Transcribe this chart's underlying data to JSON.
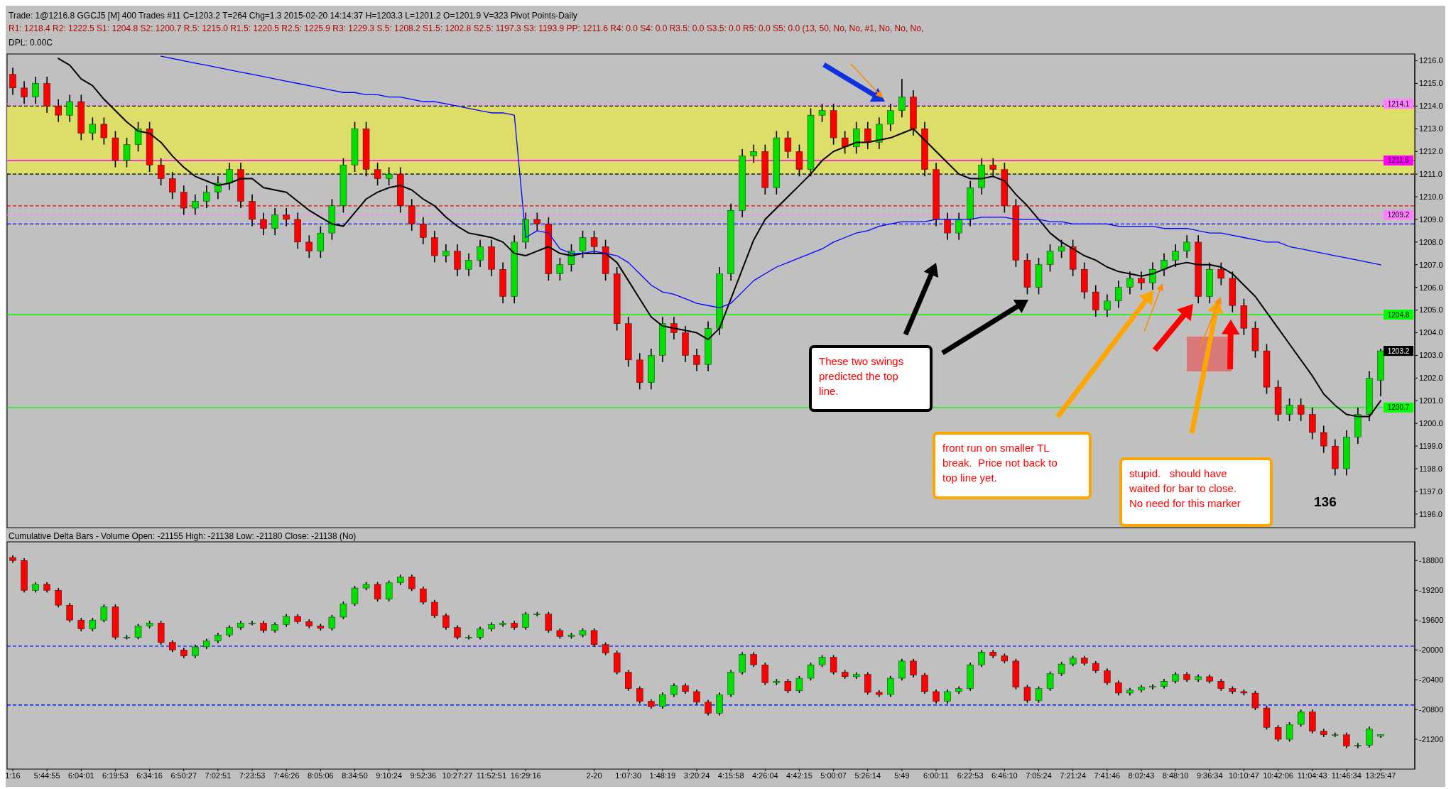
{
  "chart_data": [
    {
      "type": "candlestick",
      "title": "Trade: 1@1216.8  GGCJ5 [M]  400 Trades  #11  C=1203.2  T=264  Chg=1.3  2015-02-20 14:14:37 H=1203.3 L=1201.2 O=1201.9 V=323 Pivot Points-Daily",
      "subtitle": "R1: 1218.4  R2: 1222.5  S1: 1204.8  S2: 1200.7  R.5: 1215.0  R1.5: 1220.5  R2.5: 1225.9  R3: 1229.3  S.5: 1208.2  S1.5: 1202.8  S2.5: 1197.3  S3: 1193.9  PP: 1211.6  R4: 0.0  S4: 0.0  R3.5: 0.0  S3.5: 0.0  R5: 0.0  S5: 0.0  (13, 50, No, No, #1, No, No, No,",
      "annotations": [
        "DPL: 0.00C",
        "These two swings predicted the top line.",
        "front run on smaller TL break.  Price not back to top line yet.",
        "stupid.   should have waited for bar to close. No need for this marker",
        "136",
        {
          "text": "1203.2",
          "y": 1203.2
        }
      ],
      "categories": [
        null,
        null,
        null,
        null,
        null,
        null,
        null,
        null,
        null,
        null,
        null,
        null,
        null,
        null,
        null,
        null,
        null,
        null,
        null,
        null,
        null,
        null,
        null,
        null,
        null,
        null,
        null,
        null,
        null,
        null,
        null,
        null,
        null,
        null,
        null,
        null,
        null,
        null,
        null,
        null,
        null,
        null,
        null,
        null,
        null,
        null,
        null,
        null,
        null,
        null,
        null,
        null,
        null,
        null,
        null,
        null,
        null,
        null,
        null,
        null,
        null,
        null,
        null,
        null,
        null,
        null,
        null,
        null,
        null,
        null,
        null,
        null,
        null,
        null,
        null,
        null,
        null,
        null,
        null,
        null,
        null,
        null,
        null,
        null,
        null,
        null,
        null,
        null,
        null,
        null,
        null,
        null,
        null,
        null,
        null,
        null,
        null,
        null,
        null,
        null,
        null,
        null,
        null,
        null,
        null,
        null,
        null,
        null,
        null,
        null,
        null,
        null,
        null,
        null,
        null,
        null,
        null,
        null,
        null,
        null,
        null
      ],
      "ohlc": [
        [
          1215.4,
          1215.7,
          1214.5,
          1214.8
        ],
        [
          1214.8,
          1215.1,
          1214.1,
          1214.4
        ],
        [
          1214.4,
          1215.3,
          1214.1,
          1215.0
        ],
        [
          1215.0,
          1215.3,
          1213.7,
          1214.0
        ],
        [
          1214.0,
          1214.3,
          1213.3,
          1213.6
        ],
        [
          1213.6,
          1214.5,
          1213.3,
          1214.2
        ],
        [
          1214.2,
          1214.5,
          1212.5,
          1212.8
        ],
        [
          1212.8,
          1213.5,
          1212.5,
          1213.2
        ],
        [
          1213.2,
          1213.5,
          1212.3,
          1212.6
        ],
        [
          1212.6,
          1212.9,
          1211.3,
          1211.6
        ],
        [
          1211.6,
          1212.6,
          1211.3,
          1212.3
        ],
        [
          1212.3,
          1213.3,
          1212.0,
          1213.0
        ],
        [
          1213.0,
          1213.3,
          1211.1,
          1211.4
        ],
        [
          1211.4,
          1211.7,
          1210.5,
          1210.8
        ],
        [
          1210.8,
          1211.1,
          1209.9,
          1210.2
        ],
        [
          1210.2,
          1210.5,
          1209.2,
          1209.5
        ],
        [
          1209.5,
          1210.1,
          1209.2,
          1209.8
        ],
        [
          1209.8,
          1210.5,
          1209.5,
          1210.2
        ],
        [
          1210.2,
          1210.9,
          1209.9,
          1210.6
        ],
        [
          1210.6,
          1211.5,
          1210.3,
          1211.2
        ],
        [
          1211.2,
          1211.5,
          1209.5,
          1209.8
        ],
        [
          1209.8,
          1210.1,
          1208.7,
          1209.0
        ],
        [
          1209.0,
          1209.3,
          1208.3,
          1208.6
        ],
        [
          1208.6,
          1209.5,
          1208.3,
          1209.2
        ],
        [
          1209.2,
          1209.5,
          1208.7,
          1209.0
        ],
        [
          1209.0,
          1209.3,
          1207.7,
          1208.0
        ],
        [
          1208.0,
          1208.3,
          1207.3,
          1207.6
        ],
        [
          1207.6,
          1208.7,
          1207.3,
          1208.4
        ],
        [
          1208.4,
          1209.9,
          1208.1,
          1209.6
        ],
        [
          1209.6,
          1211.7,
          1209.3,
          1211.4
        ],
        [
          1211.4,
          1213.3,
          1211.1,
          1213.0
        ],
        [
          1213.0,
          1213.3,
          1210.9,
          1211.2
        ],
        [
          1211.2,
          1211.5,
          1210.5,
          1210.8
        ],
        [
          1210.8,
          1211.3,
          1210.5,
          1211.0
        ],
        [
          1211.0,
          1211.3,
          1209.3,
          1209.6
        ],
        [
          1209.6,
          1209.9,
          1208.5,
          1208.8
        ],
        [
          1208.8,
          1209.1,
          1207.9,
          1208.2
        ],
        [
          1208.2,
          1208.5,
          1207.1,
          1207.4
        ],
        [
          1207.4,
          1207.9,
          1207.1,
          1207.6
        ],
        [
          1207.6,
          1207.9,
          1206.5,
          1206.8
        ],
        [
          1206.8,
          1207.5,
          1206.5,
          1207.2
        ],
        [
          1207.2,
          1208.1,
          1206.9,
          1207.8
        ],
        [
          1207.8,
          1208.1,
          1206.5,
          1206.8
        ],
        [
          1206.8,
          1207.1,
          1205.3,
          1205.6
        ],
        [
          1205.6,
          1208.3,
          1205.3,
          1208.0
        ],
        [
          1208.0,
          1209.3,
          1207.7,
          1209.0
        ],
        [
          1209.0,
          1209.3,
          1208.5,
          1208.8
        ],
        [
          1208.8,
          1209.1,
          1206.3,
          1206.6
        ],
        [
          1206.6,
          1207.3,
          1206.3,
          1207.0
        ],
        [
          1207.0,
          1207.9,
          1206.7,
          1207.6
        ],
        [
          1207.6,
          1208.5,
          1207.3,
          1208.2
        ],
        [
          1208.2,
          1208.5,
          1207.5,
          1207.8
        ],
        [
          1207.8,
          1208.1,
          1206.3,
          1206.6
        ],
        [
          1206.6,
          1206.9,
          1204.1,
          1204.4
        ],
        [
          1204.4,
          1204.7,
          1202.5,
          1202.8
        ],
        [
          1202.8,
          1203.1,
          1201.5,
          1201.8
        ],
        [
          1201.8,
          1203.3,
          1201.5,
          1203.0
        ],
        [
          1203.0,
          1204.7,
          1202.7,
          1204.4
        ],
        [
          1204.4,
          1204.7,
          1203.7,
          1204.0
        ],
        [
          1204.0,
          1204.3,
          1202.7,
          1203.0
        ],
        [
          1203.0,
          1203.3,
          1202.3,
          1202.6
        ],
        [
          1202.6,
          1204.5,
          1202.3,
          1204.2
        ],
        [
          1204.2,
          1206.9,
          1203.9,
          1206.6
        ],
        [
          1206.6,
          1209.7,
          1206.3,
          1209.4
        ],
        [
          1209.4,
          1212.1,
          1209.1,
          1211.8
        ],
        [
          1211.8,
          1212.3,
          1211.5,
          1212.0
        ],
        [
          1212.0,
          1212.3,
          1210.1,
          1210.4
        ],
        [
          1210.4,
          1212.9,
          1210.1,
          1212.6
        ],
        [
          1212.6,
          1212.9,
          1211.7,
          1212.0
        ],
        [
          1212.0,
          1212.3,
          1210.9,
          1211.2
        ],
        [
          1211.2,
          1213.9,
          1210.9,
          1213.6
        ],
        [
          1213.6,
          1214.1,
          1213.3,
          1213.8
        ],
        [
          1213.8,
          1214.1,
          1212.3,
          1212.6
        ],
        [
          1212.6,
          1212.9,
          1211.9,
          1212.2
        ],
        [
          1212.2,
          1213.3,
          1211.9,
          1213.0
        ],
        [
          1213.0,
          1213.3,
          1212.1,
          1212.4
        ],
        [
          1212.4,
          1213.5,
          1212.1,
          1213.2
        ],
        [
          1213.2,
          1214.1,
          1212.9,
          1213.8
        ],
        [
          1213.8,
          1215.2,
          1213.5,
          1214.4
        ],
        [
          1214.4,
          1214.7,
          1212.7,
          1213.0
        ],
        [
          1213.0,
          1213.3,
          1210.9,
          1211.2
        ],
        [
          1211.2,
          1211.5,
          1208.7,
          1209.0
        ],
        [
          1209.0,
          1209.3,
          1208.1,
          1208.4
        ],
        [
          1208.4,
          1209.3,
          1208.1,
          1209.0
        ],
        [
          1209.0,
          1210.7,
          1208.7,
          1210.4
        ],
        [
          1210.4,
          1211.7,
          1210.1,
          1211.4
        ],
        [
          1211.4,
          1211.7,
          1210.9,
          1211.2
        ],
        [
          1211.2,
          1211.5,
          1209.3,
          1209.6
        ],
        [
          1209.6,
          1209.9,
          1206.9,
          1207.2
        ],
        [
          1207.2,
          1207.5,
          1205.7,
          1206.0
        ],
        [
          1206.0,
          1207.3,
          1205.7,
          1207.0
        ],
        [
          1207.0,
          1207.9,
          1206.7,
          1207.6
        ],
        [
          1207.6,
          1208.1,
          1207.3,
          1207.8
        ],
        [
          1207.8,
          1208.1,
          1206.5,
          1206.8
        ],
        [
          1206.8,
          1207.1,
          1205.5,
          1205.8
        ],
        [
          1205.8,
          1206.1,
          1204.7,
          1205.0
        ],
        [
          1205.0,
          1205.7,
          1204.7,
          1205.4
        ],
        [
          1205.4,
          1206.3,
          1205.1,
          1206.0
        ],
        [
          1206.0,
          1206.7,
          1205.7,
          1206.4
        ],
        [
          1206.4,
          1206.7,
          1205.9,
          1206.2
        ],
        [
          1206.2,
          1207.1,
          1205.9,
          1206.8
        ],
        [
          1206.8,
          1207.5,
          1206.5,
          1207.2
        ],
        [
          1207.2,
          1207.9,
          1206.9,
          1207.6
        ],
        [
          1207.6,
          1208.3,
          1207.3,
          1208.0
        ],
        [
          1208.0,
          1208.3,
          1205.3,
          1205.6
        ],
        [
          1205.6,
          1207.1,
          1205.3,
          1206.8
        ],
        [
          1206.8,
          1207.1,
          1206.1,
          1206.4
        ],
        [
          1206.4,
          1206.7,
          1204.9,
          1205.2
        ],
        [
          1205.2,
          1205.5,
          1203.9,
          1204.2
        ],
        [
          1204.2,
          1204.5,
          1202.9,
          1203.2
        ],
        [
          1203.2,
          1203.5,
          1201.3,
          1201.6
        ],
        [
          1201.6,
          1201.9,
          1200.1,
          1200.4
        ],
        [
          1200.4,
          1201.1,
          1200.1,
          1200.8
        ],
        [
          1200.8,
          1201.1,
          1200.1,
          1200.4
        ],
        [
          1200.4,
          1200.7,
          1199.3,
          1199.6
        ],
        [
          1199.6,
          1199.9,
          1198.7,
          1199.0
        ],
        [
          1199.0,
          1199.3,
          1197.7,
          1198.0
        ],
        [
          1198.0,
          1199.7,
          1197.7,
          1199.4
        ],
        [
          1199.4,
          1200.7,
          1199.1,
          1200.4
        ],
        [
          1200.4,
          1202.3,
          1200.1,
          1202.0
        ],
        [
          1201.9,
          1203.3,
          1201.2,
          1203.2
        ]
      ],
      "series": [
        {
          "type": "line",
          "color": "#000000",
          "values": [
            null,
            null,
            null,
            null,
            1216.1,
            1215.8,
            1215.2,
            1214.9,
            1214.3,
            1213.8,
            1213.3,
            1212.9,
            1212.8,
            1212.4,
            1211.8,
            1211.3,
            1210.9,
            1210.7,
            1210.5,
            1210.6,
            1210.8,
            1210.8,
            1210.4,
            1210.3,
            1210.2,
            1209.8,
            1209.4,
            1209.1,
            1208.8,
            1208.7,
            1209.3,
            1209.9,
            1210.2,
            1210.4,
            1210.5,
            1210.3,
            1209.9,
            1209.6,
            1209.1,
            1208.7,
            1208.4,
            1208.3,
            1208.2,
            1208.0,
            1207.5,
            1207.4,
            1207.6,
            1207.8,
            1207.5,
            1207.4,
            1207.5,
            1207.5,
            1207.5,
            1207.1,
            1206.3,
            1205.5,
            1204.7,
            1204.3,
            1204.2,
            1204.1,
            1204.0,
            1203.7,
            1204.2,
            1205.5,
            1206.8,
            1208.1,
            1209.0,
            1209.5,
            1210.0,
            1210.5,
            1211.0,
            1211.6,
            1212.0,
            1212.2,
            1212.4,
            1212.4,
            1212.5,
            1212.6,
            1212.8,
            1213.0,
            1212.5,
            1212.0,
            1211.5,
            1211.0,
            1210.8,
            1210.8,
            1210.9,
            1210.7,
            1210.1,
            1209.6,
            1209.0,
            1208.4,
            1208.0,
            1207.7,
            1207.4,
            1207.2,
            1206.9,
            1206.7,
            1206.6,
            1206.5,
            1206.6,
            1206.8,
            1207.0,
            1207.1,
            1207.0,
            1207.0,
            1206.9,
            1206.6,
            1206.1,
            1205.6,
            1204.9,
            1204.2,
            1203.5,
            1202.8,
            1202.1,
            1201.3,
            1200.8,
            1200.4,
            1200.3,
            1200.3,
            1201.0
          ]
        },
        {
          "type": "line",
          "color": "#0000ff",
          "values": [
            null,
            null,
            null,
            null,
            null,
            null,
            null,
            null,
            null,
            null,
            null,
            null,
            null,
            1216.2,
            1216.1,
            1216.0,
            1215.9,
            1215.8,
            1215.7,
            1215.6,
            1215.5,
            1215.4,
            1215.3,
            1215.2,
            1215.1,
            1215.0,
            1214.9,
            1214.8,
            1214.7,
            1214.6,
            1214.6,
            1214.5,
            1214.5,
            1214.4,
            1214.4,
            1214.3,
            1214.2,
            1214.2,
            1214.1,
            1214.0,
            1213.9,
            1213.8,
            1213.7,
            1213.7,
            1213.6,
            1208.2,
            1208.5,
            1208.4,
            1207.7,
            1207.5,
            1207.5,
            1207.6,
            1207.5,
            1207.4,
            1207.1,
            1206.6,
            1206.1,
            1205.8,
            1205.7,
            1205.5,
            1205.3,
            1205.2,
            1205.1,
            1205.3,
            1205.8,
            1206.3,
            1206.6,
            1206.9,
            1207.1,
            1207.3,
            1207.5,
            1207.7,
            1208.0,
            1208.2,
            1208.4,
            1208.5,
            1208.7,
            1208.8,
            1208.9,
            1208.9,
            1208.9,
            1209.0,
            1209.0,
            1209.0,
            1209.0,
            1209.1,
            1209.1,
            1209.1,
            1209.0,
            1209.0,
            1209.0,
            1208.9,
            1208.9,
            1208.8,
            1208.8,
            1208.8,
            1208.8,
            1208.7,
            1208.7,
            1208.7,
            1208.7,
            1208.6,
            1208.6,
            1208.6,
            1208.5,
            1208.4,
            1208.4,
            1208.3,
            1208.2,
            1208.1,
            1208.0,
            1208.0,
            1207.8,
            1207.7,
            1207.6,
            1207.5,
            1207.4,
            1207.3,
            1207.2,
            1207.1,
            1207.0
          ]
        }
      ],
      "ylim": [
        1195.4,
        1216.3
      ],
      "yticks": [
        {
          "value": 1196,
          "label": "1196.0"
        },
        {
          "value": 1197,
          "label": "1197.0"
        },
        {
          "value": 1198,
          "label": "1198.0"
        },
        {
          "value": 1199,
          "label": "1199.0"
        },
        {
          "value": 1200,
          "label": "1200.0"
        },
        {
          "value": 1201,
          "label": "1201.0"
        },
        {
          "value": 1202,
          "label": "1202.0"
        },
        {
          "value": 1203,
          "label": "1203.0"
        },
        {
          "value": 1204,
          "label": "1204.0"
        },
        {
          "value": 1205,
          "label": "1205.0"
        },
        {
          "value": 1206,
          "label": "1206.0"
        },
        {
          "value": 1207,
          "label": "1207.0"
        },
        {
          "value": 1208,
          "label": "1208.0"
        },
        {
          "value": 1209,
          "label": "1209.0"
        },
        {
          "value": 1210,
          "label": "1210.0"
        },
        {
          "value": 1211,
          "label": "1211.0"
        },
        {
          "value": 1212,
          "label": "1212.0"
        },
        {
          "value": 1213,
          "label": "1213.0"
        },
        {
          "value": 1214,
          "label": "1214.0"
        },
        {
          "value": 1215,
          "label": "1215.0"
        },
        {
          "value": 1216,
          "label": "1216.0"
        }
      ],
      "ref_lines": [
        {
          "axis": "y",
          "value": 1214.1,
          "label": "1214.1",
          "color": "#ff80ff",
          "line_style": "dashed"
        },
        {
          "axis": "y",
          "value": 1211.6,
          "label": "1211.6",
          "color": "#ff00ff"
        },
        {
          "axis": "y",
          "value": 1209.2,
          "label": "1209.2",
          "color": "#ff80ff",
          "line_style": "dashed"
        },
        {
          "axis": "y",
          "value": 1204.8,
          "label": "1204.8",
          "color": "#00ff00"
        },
        {
          "axis": "y",
          "value": 1200.7,
          "label": "1200.7",
          "color": "#00ff00"
        },
        {
          "axis": "y",
          "value": 1214.0,
          "color": "#000000",
          "line_style": "dashed"
        },
        {
          "axis": "y",
          "value": 1211.0,
          "color": "#000000",
          "line_style": "dashed"
        },
        {
          "axis": "y",
          "value": 1209.6,
          "color": "#ff0000",
          "line_style": "dashed"
        },
        {
          "axis": "y",
          "value": 1208.8,
          "color": "#0000ff",
          "line_style": "dashed"
        }
      ],
      "bands": [
        {
          "axis": "y",
          "from": 1211.0,
          "to": 1214.0,
          "color": "#e0e060"
        }
      ],
      "tick_labels": "y"
    },
    {
      "type": "candlestick",
      "title": "Cumulative Delta Bars - Volume  Open: -21155  High: -21138  Low: -21180  Close: -21138  (No)",
      "categories": [
        "1:16",
        null,
        null,
        "5:44:55",
        null,
        null,
        "6:04:01",
        null,
        null,
        "6:19:53",
        null,
        null,
        "6:34:16",
        null,
        null,
        "6:50:27",
        null,
        null,
        "7:02:51",
        null,
        null,
        "7:23:53",
        null,
        null,
        "7:46:26",
        null,
        null,
        "8:05:06",
        null,
        null,
        "8:34:50",
        null,
        null,
        "9:10:24",
        null,
        null,
        "9:52:36",
        null,
        null,
        "10:27:27",
        null,
        null,
        "11:52:51",
        null,
        null,
        "16:29:16",
        null,
        null,
        null,
        null,
        null,
        "2-20",
        null,
        null,
        "1:07:30",
        null,
        null,
        "1:48:19",
        null,
        null,
        "3:20:24",
        null,
        null,
        "4:15:58",
        null,
        null,
        "4:26:04",
        null,
        null,
        "4:42:15",
        null,
        null,
        "5:00:07",
        null,
        null,
        "5:26:14",
        null,
        null,
        "5:49",
        null,
        null,
        "6:00:11",
        null,
        null,
        "6:22:53",
        null,
        null,
        "6:46:10",
        null,
        null,
        "7:05:24",
        null,
        null,
        "7:21:24",
        null,
        null,
        "7:41:46",
        null,
        null,
        "8:02:43",
        null,
        null,
        "8:48:10",
        null,
        null,
        "9:36:34",
        null,
        null,
        "10:10:47",
        null,
        null,
        "10:42:06",
        null,
        null,
        "11:04:43",
        null,
        null,
        "11:46:34",
        null,
        null,
        "13:25:47"
      ],
      "ohlc": [
        [
          -18760,
          -18730,
          -18830,
          -18800
        ],
        [
          -18800,
          -18770,
          -19230,
          -19200
        ],
        [
          -19200,
          -19090,
          -19230,
          -19120
        ],
        [
          -19120,
          -19090,
          -19230,
          -19200
        ],
        [
          -19200,
          -19170,
          -19430,
          -19400
        ],
        [
          -19400,
          -19370,
          -19630,
          -19600
        ],
        [
          -19600,
          -19570,
          -19750,
          -19720
        ],
        [
          -19720,
          -19570,
          -19750,
          -19600
        ],
        [
          -19600,
          -19390,
          -19630,
          -19420
        ],
        [
          -19420,
          -19390,
          -19860,
          -19830
        ],
        [
          -19830,
          -19800,
          -19860,
          -19830
        ],
        [
          -19830,
          -19650,
          -19860,
          -19680
        ],
        [
          -19680,
          -19610,
          -19710,
          -19640
        ],
        [
          -19640,
          -19610,
          -19930,
          -19900
        ],
        [
          -19900,
          -19870,
          -20030,
          -20000
        ],
        [
          -20000,
          -19970,
          -20110,
          -20080
        ],
        [
          -20080,
          -19930,
          -20110,
          -19960
        ],
        [
          -19960,
          -19850,
          -19990,
          -19880
        ],
        [
          -19880,
          -19770,
          -19910,
          -19800
        ],
        [
          -19800,
          -19670,
          -19830,
          -19700
        ],
        [
          -19700,
          -19610,
          -19730,
          -19640
        ],
        [
          -19640,
          -19610,
          -19670,
          -19640
        ],
        [
          -19640,
          -19610,
          -19770,
          -19740
        ],
        [
          -19740,
          -19630,
          -19770,
          -19660
        ],
        [
          -19660,
          -19520,
          -19690,
          -19550
        ],
        [
          -19550,
          -19520,
          -19650,
          -19620
        ],
        [
          -19620,
          -19590,
          -19710,
          -19680
        ],
        [
          -19680,
          -19650,
          -19740,
          -19710
        ],
        [
          -19710,
          -19530,
          -19740,
          -19560
        ],
        [
          -19560,
          -19350,
          -19590,
          -19380
        ],
        [
          -19380,
          -19140,
          -19410,
          -19170
        ],
        [
          -19170,
          -19090,
          -19200,
          -19120
        ],
        [
          -19120,
          -19090,
          -19350,
          -19320
        ],
        [
          -19320,
          -19070,
          -19350,
          -19100
        ],
        [
          -19100,
          -18990,
          -19130,
          -19020
        ],
        [
          -19020,
          -18990,
          -19210,
          -19180
        ],
        [
          -19180,
          -19150,
          -19390,
          -19360
        ],
        [
          -19360,
          -19330,
          -19570,
          -19540
        ],
        [
          -19540,
          -19510,
          -19730,
          -19700
        ],
        [
          -19700,
          -19670,
          -19860,
          -19830
        ],
        [
          -19830,
          -19800,
          -19860,
          -19830
        ],
        [
          -19830,
          -19690,
          -19860,
          -19720
        ],
        [
          -19720,
          -19630,
          -19750,
          -19660
        ],
        [
          -19660,
          -19610,
          -19690,
          -19640
        ],
        [
          -19640,
          -19610,
          -19730,
          -19700
        ],
        [
          -19700,
          -19490,
          -19730,
          -19520
        ],
        [
          -19520,
          -19490,
          -19550,
          -19520
        ],
        [
          -19520,
          -19490,
          -19770,
          -19740
        ],
        [
          -19740,
          -19710,
          -19850,
          -19820
        ],
        [
          -19820,
          -19770,
          -19850,
          -19800
        ],
        [
          -19800,
          -19710,
          -19830,
          -19740
        ],
        [
          -19740,
          -19710,
          -19960,
          -19930
        ],
        [
          -19930,
          -19900,
          -20070,
          -20040
        ],
        [
          -20040,
          -20010,
          -20330,
          -20300
        ],
        [
          -20300,
          -20270,
          -20550,
          -20520
        ],
        [
          -20520,
          -20490,
          -20720,
          -20690
        ],
        [
          -20690,
          -20660,
          -20790,
          -20760
        ],
        [
          -20760,
          -20570,
          -20790,
          -20600
        ],
        [
          -20600,
          -20450,
          -20630,
          -20480
        ],
        [
          -20480,
          -20450,
          -20590,
          -20560
        ],
        [
          -20560,
          -20530,
          -20730,
          -20700
        ],
        [
          -20700,
          -20670,
          -20880,
          -20850
        ],
        [
          -20850,
          -20570,
          -20880,
          -20600
        ],
        [
          -20600,
          -20270,
          -20630,
          -20300
        ],
        [
          -20300,
          -20030,
          -20330,
          -20060
        ],
        [
          -20060,
          -20030,
          -20230,
          -20200
        ],
        [
          -20200,
          -20170,
          -20470,
          -20440
        ],
        [
          -20440,
          -20390,
          -20470,
          -20420
        ],
        [
          -20420,
          -20390,
          -20580,
          -20550
        ],
        [
          -20550,
          -20350,
          -20580,
          -20380
        ],
        [
          -20380,
          -20170,
          -20410,
          -20200
        ],
        [
          -20200,
          -20070,
          -20230,
          -20100
        ],
        [
          -20100,
          -20070,
          -20330,
          -20300
        ],
        [
          -20300,
          -20270,
          -20390,
          -20360
        ],
        [
          -20360,
          -20300,
          -20390,
          -20330
        ],
        [
          -20330,
          -20300,
          -20600,
          -20570
        ],
        [
          -20570,
          -20540,
          -20630,
          -20600
        ],
        [
          -20600,
          -20350,
          -20630,
          -20380
        ],
        [
          -20380,
          -20120,
          -20410,
          -20150
        ],
        [
          -20150,
          -20120,
          -20370,
          -20340
        ],
        [
          -20340,
          -20310,
          -20590,
          -20560
        ],
        [
          -20560,
          -20530,
          -20720,
          -20690
        ],
        [
          -20690,
          -20530,
          -20720,
          -20560
        ],
        [
          -20560,
          -20490,
          -20590,
          -20520
        ],
        [
          -20520,
          -20170,
          -20550,
          -20200
        ],
        [
          -20200,
          -20000,
          -20230,
          -20030
        ],
        [
          -20030,
          -20000,
          -20110,
          -20080
        ],
        [
          -20080,
          -20050,
          -20180,
          -20150
        ],
        [
          -20150,
          -20120,
          -20530,
          -20500
        ],
        [
          -20500,
          -20470,
          -20710,
          -20680
        ],
        [
          -20680,
          -20490,
          -20710,
          -20520
        ],
        [
          -20520,
          -20290,
          -20550,
          -20320
        ],
        [
          -20320,
          -20160,
          -20350,
          -20190
        ],
        [
          -20190,
          -20080,
          -20220,
          -20110
        ],
        [
          -20110,
          -20080,
          -20210,
          -20180
        ],
        [
          -20180,
          -20150,
          -20310,
          -20280
        ],
        [
          -20280,
          -20250,
          -20470,
          -20440
        ],
        [
          -20440,
          -20410,
          -20610,
          -20580
        ],
        [
          -20580,
          -20510,
          -20610,
          -20540
        ],
        [
          -20540,
          -20470,
          -20570,
          -20500
        ],
        [
          -20500,
          -20460,
          -20530,
          -20490
        ],
        [
          -20490,
          -20390,
          -20520,
          -20420
        ],
        [
          -20420,
          -20300,
          -20450,
          -20330
        ],
        [
          -20330,
          -20300,
          -20430,
          -20400
        ],
        [
          -20400,
          -20330,
          -20430,
          -20360
        ],
        [
          -20360,
          -20330,
          -20450,
          -20420
        ],
        [
          -20420,
          -20390,
          -20550,
          -20520
        ],
        [
          -20520,
          -20490,
          -20590,
          -20560
        ],
        [
          -20560,
          -20530,
          -20610,
          -20580
        ],
        [
          -20580,
          -20550,
          -20810,
          -20780
        ],
        [
          -20780,
          -20750,
          -21070,
          -21040
        ],
        [
          -21040,
          -21010,
          -21230,
          -21200
        ],
        [
          -21200,
          -20970,
          -21230,
          -21000
        ],
        [
          -21000,
          -20800,
          -21030,
          -20830
        ],
        [
          -20830,
          -20800,
          -21120,
          -21090
        ],
        [
          -21090,
          -21060,
          -21170,
          -21140
        ],
        [
          -21140,
          -21110,
          -21170,
          -21140
        ],
        [
          -21140,
          -21110,
          -21320,
          -21290
        ],
        [
          -21290,
          -21250,
          -21320,
          -21280
        ],
        [
          -21280,
          -21030,
          -21310,
          -21060
        ],
        [
          -21155,
          -21138,
          -21180,
          -21138
        ]
      ],
      "ylim": [
        -21600,
        -18550
      ],
      "yticks": [
        -18800,
        -19200,
        -19600,
        -20000,
        -20400,
        -20800,
        -21200
      ],
      "ref_lines": [
        {
          "axis": "y",
          "value": -19950,
          "color": "#0000ff",
          "line_style": "dashed"
        },
        {
          "axis": "y",
          "value": -20740,
          "color": "#0000ff",
          "line_style": "dashed"
        }
      ]
    }
  ]
}
